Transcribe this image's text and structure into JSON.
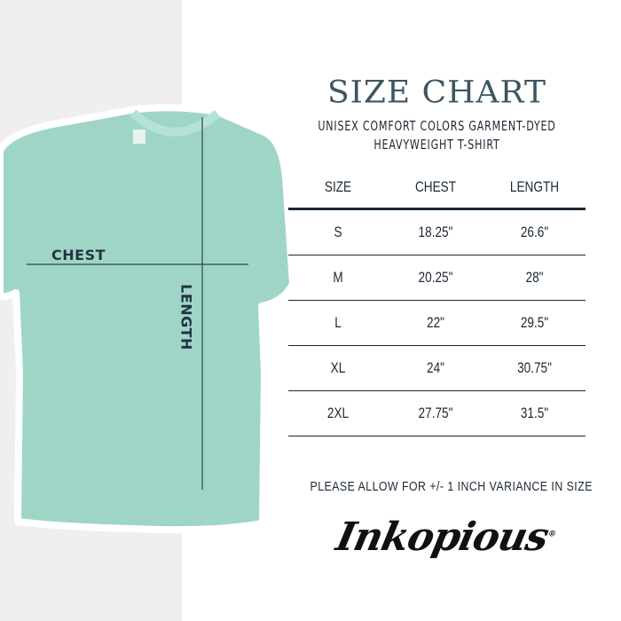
{
  "shirt": {
    "color": "#9fd5c7",
    "chest_label": "CHEST",
    "length_label": "LENGTH"
  },
  "title": "SIZE CHART",
  "subtitle_line1": "UNISEX COMFORT COLORS GARMENT-DYED",
  "subtitle_line2": "HEAVYWEIGHT T-SHIRT",
  "table": {
    "headers": [
      "SIZE",
      "CHEST",
      "LENGTH"
    ],
    "rows": [
      [
        "S",
        "18.25\"",
        "26.6\""
      ],
      [
        "M",
        "20.25\"",
        "28\""
      ],
      [
        "L",
        "22\"",
        "29.5\""
      ],
      [
        "XL",
        "24\"",
        "30.75\""
      ],
      [
        "2XL",
        "27.75\"",
        "31.5\""
      ]
    ]
  },
  "note": "PLEASE ALLOW FOR +/- 1 INCH VARIANCE IN SIZE",
  "logo": "Inkopious"
}
